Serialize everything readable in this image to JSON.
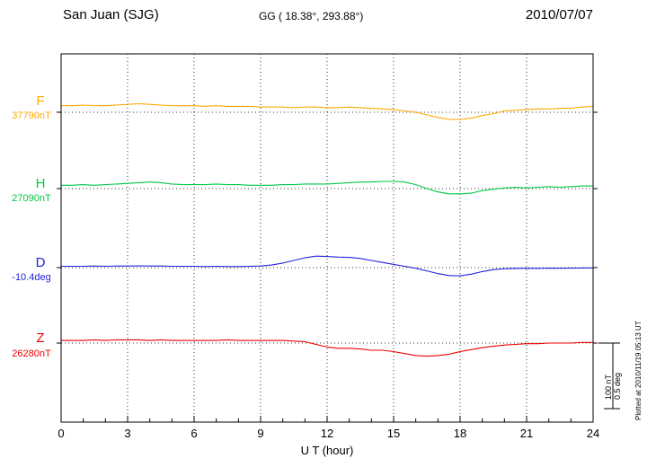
{
  "header": {
    "station": "San Juan (SJG)",
    "coords": "GG ( 18.38°, 293.88°)",
    "date": "2010/07/07"
  },
  "footer": {
    "plotted_at": "Plotted at 2010/11/19 05:13 UT"
  },
  "scalebar": {
    "label_nt": "100 nT",
    "label_deg": "0.5 deg"
  },
  "chart_data": {
    "type": "line",
    "title": "San Juan (SJG)",
    "subtitle": "GG ( 18.38°, 293.88°)",
    "date": "2010/07/07",
    "xlabel": "U T (hour)",
    "xlim": [
      0,
      24
    ],
    "xticks": [
      0,
      3,
      6,
      9,
      12,
      15,
      18,
      21,
      24
    ],
    "grid": "dotted vertical gridlines every 3 hours; dotted horizontal baseline per component",
    "legend_position": "left margin component labels",
    "scale": {
      "nT_per_bar": 100,
      "deg_per_bar": 0.5
    },
    "values_meaning": "offsets from baseline_value in the series unit",
    "x": [
      0,
      0.5,
      1,
      1.5,
      2,
      2.5,
      3,
      3.5,
      4,
      4.5,
      5,
      5.5,
      6,
      6.5,
      7,
      7.5,
      8,
      8.5,
      9,
      9.5,
      10,
      10.5,
      11,
      11.5,
      12,
      12.5,
      13,
      13.5,
      14,
      14.5,
      15,
      15.5,
      16,
      16.5,
      17,
      17.5,
      18,
      18.5,
      19,
      19.5,
      20,
      20.5,
      21,
      21.5,
      22,
      22.5,
      23,
      23.5,
      24
    ],
    "series": [
      {
        "name": "F",
        "unit": "nT",
        "color": "#FFA800",
        "baseline_value": 37790,
        "baseline_label": "37790nT",
        "values": [
          10,
          10,
          11,
          10,
          10,
          11,
          12,
          13,
          12,
          11,
          10,
          10,
          10,
          9,
          10,
          9,
          9,
          9,
          8,
          8,
          8,
          7,
          8,
          8,
          7,
          7,
          8,
          7,
          6,
          5,
          4,
          2,
          0,
          -4,
          -8,
          -11,
          -11,
          -9,
          -5,
          -2,
          2,
          3,
          4,
          5,
          5,
          6,
          6,
          8,
          9
        ]
      },
      {
        "name": "H",
        "unit": "nT",
        "color": "#00C846",
        "baseline_value": 27090,
        "baseline_label": "27090nT",
        "values": [
          5,
          5,
          6,
          5,
          6,
          7,
          8,
          9,
          10,
          9,
          7,
          6,
          6,
          6,
          7,
          6,
          6,
          5,
          5,
          5,
          6,
          6,
          7,
          7,
          7,
          8,
          9,
          10,
          10,
          11,
          11,
          10,
          6,
          0,
          -5,
          -8,
          -8,
          -7,
          -3,
          -1,
          1,
          2,
          1,
          2,
          3,
          2,
          3,
          4,
          4
        ]
      },
      {
        "name": "D",
        "unit": "deg",
        "color": "#2222DD",
        "baseline_value": -10.4,
        "baseline_label": "-10.4deg",
        "values": [
          0.01,
          0.01,
          0.01,
          0.012,
          0.01,
          0.012,
          0.012,
          0.014,
          0.012,
          0.012,
          0.01,
          0.01,
          0.01,
          0.008,
          0.01,
          0.008,
          0.008,
          0.01,
          0.012,
          0.02,
          0.035,
          0.055,
          0.075,
          0.088,
          0.085,
          0.08,
          0.078,
          0.07,
          0.055,
          0.04,
          0.025,
          0.01,
          -0.005,
          -0.025,
          -0.045,
          -0.06,
          -0.062,
          -0.05,
          -0.03,
          -0.015,
          -0.008,
          -0.006,
          -0.005,
          -0.006,
          -0.004,
          -0.005,
          -0.004,
          -0.003,
          -0.002
        ]
      },
      {
        "name": "Z",
        "unit": "nT",
        "color": "#EE0000",
        "baseline_value": 26280,
        "baseline_label": "26280nT",
        "values": [
          4,
          4,
          4,
          5,
          4,
          5,
          5,
          5,
          4,
          5,
          4,
          4,
          4,
          4,
          4,
          5,
          4,
          4,
          4,
          4,
          4,
          3,
          2,
          -2,
          -6,
          -8,
          -8,
          -9,
          -11,
          -11,
          -13,
          -16,
          -19,
          -20,
          -19,
          -17,
          -13,
          -10,
          -7,
          -5,
          -3,
          -2,
          -1,
          -1,
          0,
          0,
          0,
          1,
          1
        ]
      }
    ]
  }
}
